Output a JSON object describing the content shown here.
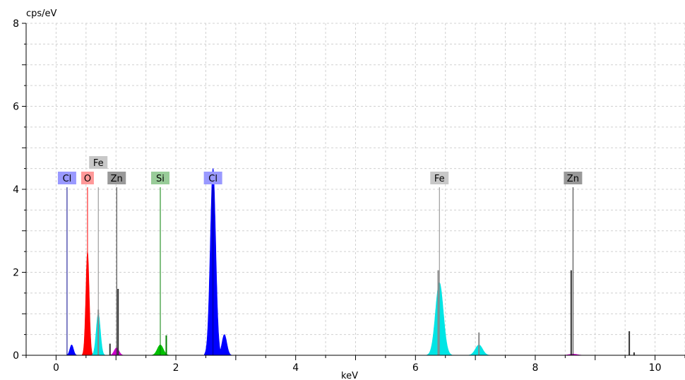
{
  "chart_data": {
    "type": "area",
    "title": "",
    "xlabel": "keV",
    "ylabel": "cps/eV",
    "xlim": [
      -0.5,
      10.5
    ],
    "ylim": [
      0,
      8
    ],
    "xticks": [
      0,
      2,
      4,
      6,
      8,
      10
    ],
    "xtick_labels": [
      "0",
      "2",
      "4",
      "6",
      "8",
      "10"
    ],
    "yticks": [
      0,
      2,
      4,
      6,
      8
    ],
    "ytick_labels": [
      "0",
      "2",
      "4",
      "6",
      "8"
    ],
    "grid": true,
    "series": [
      {
        "name": "Cl",
        "color": "#0000ff",
        "peaks": [
          {
            "x": 0.26,
            "y": 0.25,
            "w": 0.03
          },
          {
            "x": 2.62,
            "y": 4.5,
            "w": 0.045
          },
          {
            "x": 2.81,
            "y": 0.5,
            "w": 0.04
          }
        ]
      },
      {
        "name": "O",
        "color": "#ff0000",
        "peaks": [
          {
            "x": 0.525,
            "y": 2.5,
            "w": 0.028
          }
        ]
      },
      {
        "name": "Fe",
        "color": "#00e5e5",
        "peaks": [
          {
            "x": 0.705,
            "y": 1.0,
            "w": 0.035
          },
          {
            "x": 6.4,
            "y": 1.75,
            "w": 0.065
          },
          {
            "x": 7.06,
            "y": 0.25,
            "w": 0.06
          }
        ]
      },
      {
        "name": "Zn",
        "color": "#cc00cc",
        "peaks": [
          {
            "x": 1.01,
            "y": 0.18,
            "w": 0.04
          },
          {
            "x": 8.63,
            "y": 0.03,
            "w": 0.07
          }
        ]
      },
      {
        "name": "Si",
        "color": "#00c000",
        "peaks": [
          {
            "x": 1.74,
            "y": 0.25,
            "w": 0.05
          }
        ]
      }
    ],
    "marker_lines": [
      {
        "label": "Cl",
        "x": 0.183,
        "color": "#00008b",
        "label_bg": "#9999ff",
        "label_row": 1
      },
      {
        "label": "O",
        "x": 0.525,
        "color": "#ff0000",
        "label_bg": "#ff9999",
        "label_row": 1
      },
      {
        "label": "Fe",
        "x": 0.705,
        "color": "#888888",
        "label_bg": "#c8c8c8",
        "label_row": 0
      },
      {
        "label": "Zn",
        "x": 1.012,
        "color": "#333333",
        "label_bg": "#999999",
        "label_row": 1
      },
      {
        "label": "Si",
        "x": 1.74,
        "color": "#008000",
        "label_bg": "#99cc99",
        "label_row": 1
      },
      {
        "label": "Cl",
        "x": 2.62,
        "color": "#00008b",
        "label_bg": "#9999ff",
        "label_row": 1
      },
      {
        "label": "Fe",
        "x": 6.4,
        "color": "#888888",
        "label_bg": "#c8c8c8",
        "label_row": 1
      },
      {
        "label": "Zn",
        "x": 8.63,
        "color": "#333333",
        "label_bg": "#999999",
        "label_row": 1
      }
    ],
    "sticks": [
      {
        "x": 0.525,
        "y": 2.05,
        "color": "#ff0000"
      },
      {
        "x": 0.705,
        "y": 1.1,
        "color": "#888888"
      },
      {
        "x": 1.035,
        "y": 1.6,
        "color": "#333333"
      },
      {
        "x": 0.9,
        "y": 0.28,
        "color": "#333333"
      },
      {
        "x": 1.84,
        "y": 0.48,
        "color": "#008000"
      },
      {
        "x": 6.38,
        "y": 2.05,
        "color": "#888888"
      },
      {
        "x": 7.06,
        "y": 0.55,
        "color": "#888888"
      },
      {
        "x": 8.6,
        "y": 2.05,
        "color": "#333333"
      },
      {
        "x": 9.57,
        "y": 0.58,
        "color": "#333333"
      },
      {
        "x": 9.65,
        "y": 0.07,
        "color": "#333333"
      }
    ]
  }
}
